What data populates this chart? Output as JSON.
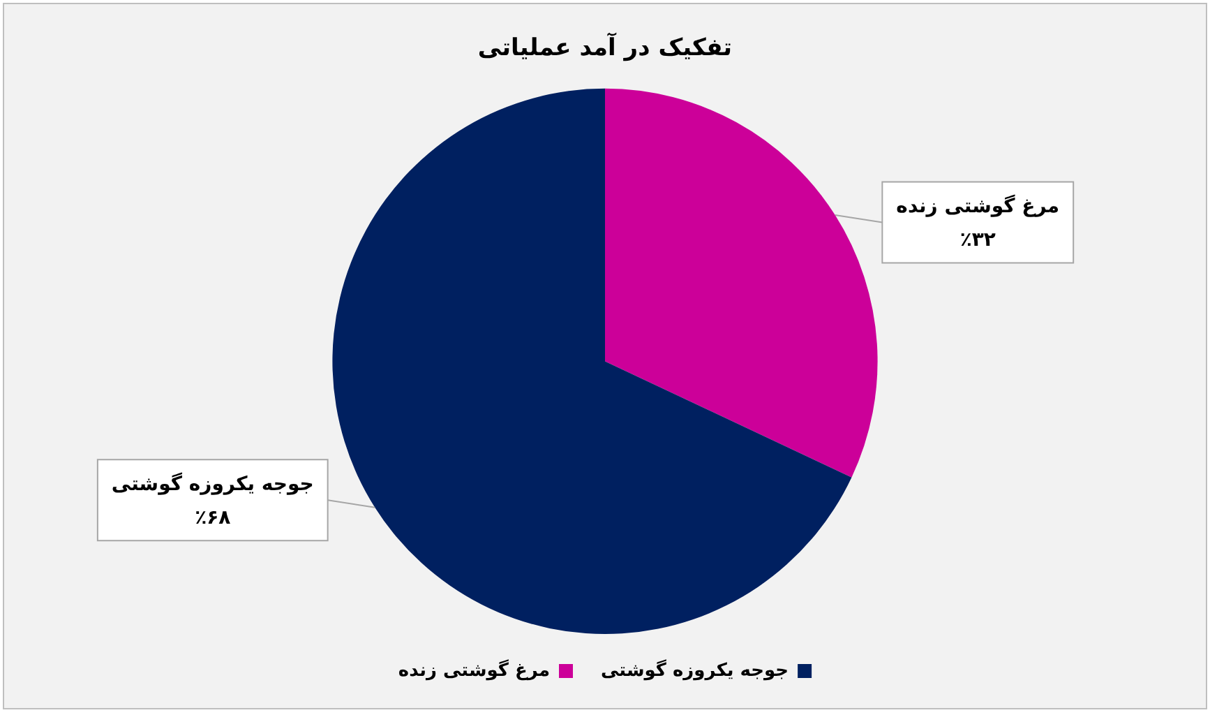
{
  "chart_data": {
    "type": "pie",
    "title": "تفکیک در آمد عملیاتی",
    "categories": [
      "مرغ گوشتی زنده",
      "جوجه یکروزه گوشتی"
    ],
    "values": [
      32,
      68
    ],
    "colors": [
      "#cc0099",
      "#002060"
    ],
    "value_labels": [
      "٪۳۲",
      "٪۶۸"
    ],
    "legend": "bottom"
  }
}
